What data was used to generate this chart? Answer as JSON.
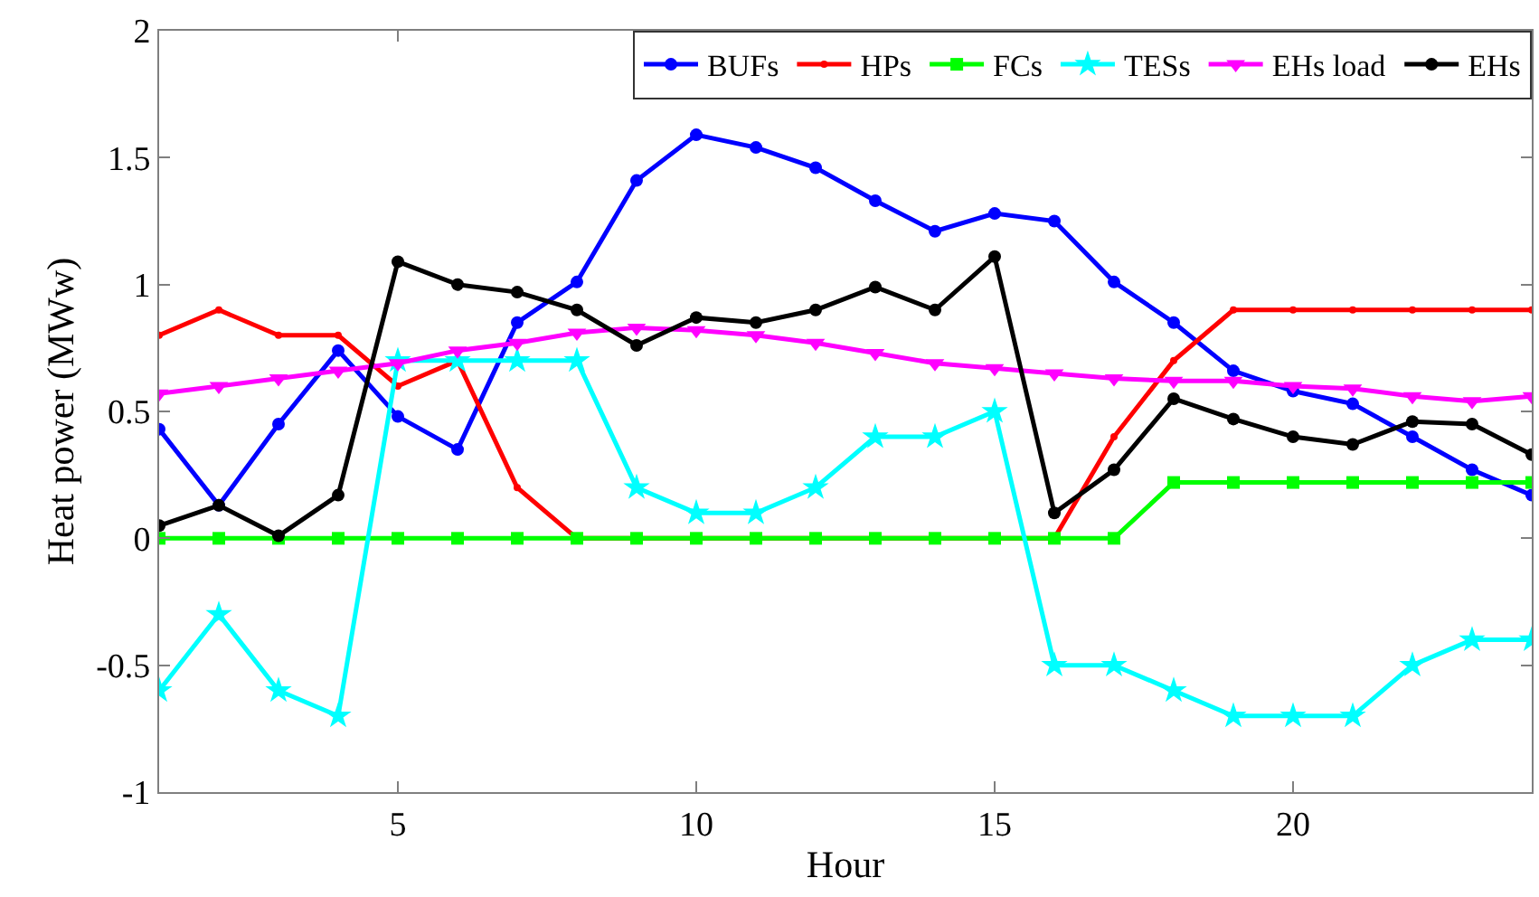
{
  "chart_data": {
    "type": "line",
    "xlabel": "Hour",
    "ylabel": "Heat power (MWw)",
    "x": [
      1,
      2,
      3,
      4,
      5,
      6,
      7,
      8,
      9,
      10,
      11,
      12,
      13,
      14,
      15,
      16,
      17,
      18,
      19,
      20,
      21,
      22,
      23,
      24
    ],
    "xlim": [
      1,
      24
    ],
    "xticks": [
      5,
      10,
      15,
      20
    ],
    "ylim": [
      -1,
      2
    ],
    "yticks": [
      -1,
      -0.5,
      0,
      0.5,
      1,
      1.5,
      2
    ],
    "legend": "top right",
    "line_style": "solid",
    "series": [
      {
        "name": "BUFs",
        "color": "#0000ff",
        "marker": "circle",
        "values": [
          0.43,
          0.13,
          0.45,
          0.74,
          0.48,
          0.35,
          0.85,
          1.01,
          1.41,
          1.59,
          1.54,
          1.46,
          1.33,
          1.21,
          1.28,
          1.25,
          1.01,
          0.85,
          0.66,
          0.58,
          0.53,
          0.4,
          0.27,
          0.17
        ]
      },
      {
        "name": "HPs",
        "color": "#ff0000",
        "marker": "circle",
        "values": [
          0.8,
          0.9,
          0.8,
          0.8,
          0.6,
          0.7,
          0.2,
          0,
          0,
          0,
          0,
          0,
          0,
          0,
          0,
          0,
          0.4,
          0.7,
          0.9,
          0.9,
          0.9,
          0.9,
          0.9,
          0.9
        ]
      },
      {
        "name": "FCs",
        "color": "#00ff00",
        "marker": "square",
        "values": [
          0,
          0,
          0,
          0,
          0,
          0,
          0,
          0,
          0,
          0,
          0,
          0,
          0,
          0,
          0,
          0,
          0,
          0.22,
          0.22,
          0.22,
          0.22,
          0.22,
          0.22,
          0.22
        ]
      },
      {
        "name": "TESs",
        "color": "#00ffff",
        "marker": "star",
        "values": [
          -0.6,
          -0.3,
          -0.6,
          -0.7,
          0.7,
          0.7,
          0.7,
          0.7,
          0.2,
          0.1,
          0.1,
          0.2,
          0.4,
          0.4,
          0.5,
          -0.5,
          -0.5,
          -0.6,
          -0.7,
          -0.7,
          -0.7,
          -0.5,
          -0.4,
          -0.4
        ]
      },
      {
        "name": "EHs load",
        "color": "#ff00ff",
        "marker": "triangle",
        "values": [
          0.57,
          0.6,
          0.63,
          0.66,
          0.69,
          0.74,
          0.77,
          0.81,
          0.83,
          0.82,
          0.8,
          0.77,
          0.73,
          0.69,
          0.67,
          0.65,
          0.63,
          0.62,
          0.62,
          0.6,
          0.59,
          0.56,
          0.54,
          0.56
        ]
      },
      {
        "name": "EHs",
        "color": "#000000",
        "marker": "circle",
        "values": [
          0.05,
          0.13,
          0.01,
          0.17,
          1.09,
          1.0,
          0.97,
          0.9,
          0.76,
          0.87,
          0.85,
          0.9,
          0.99,
          0.9,
          1.11,
          0.1,
          0.27,
          0.55,
          0.47,
          0.4,
          0.37,
          0.46,
          0.45,
          0.33
        ]
      }
    ]
  }
}
